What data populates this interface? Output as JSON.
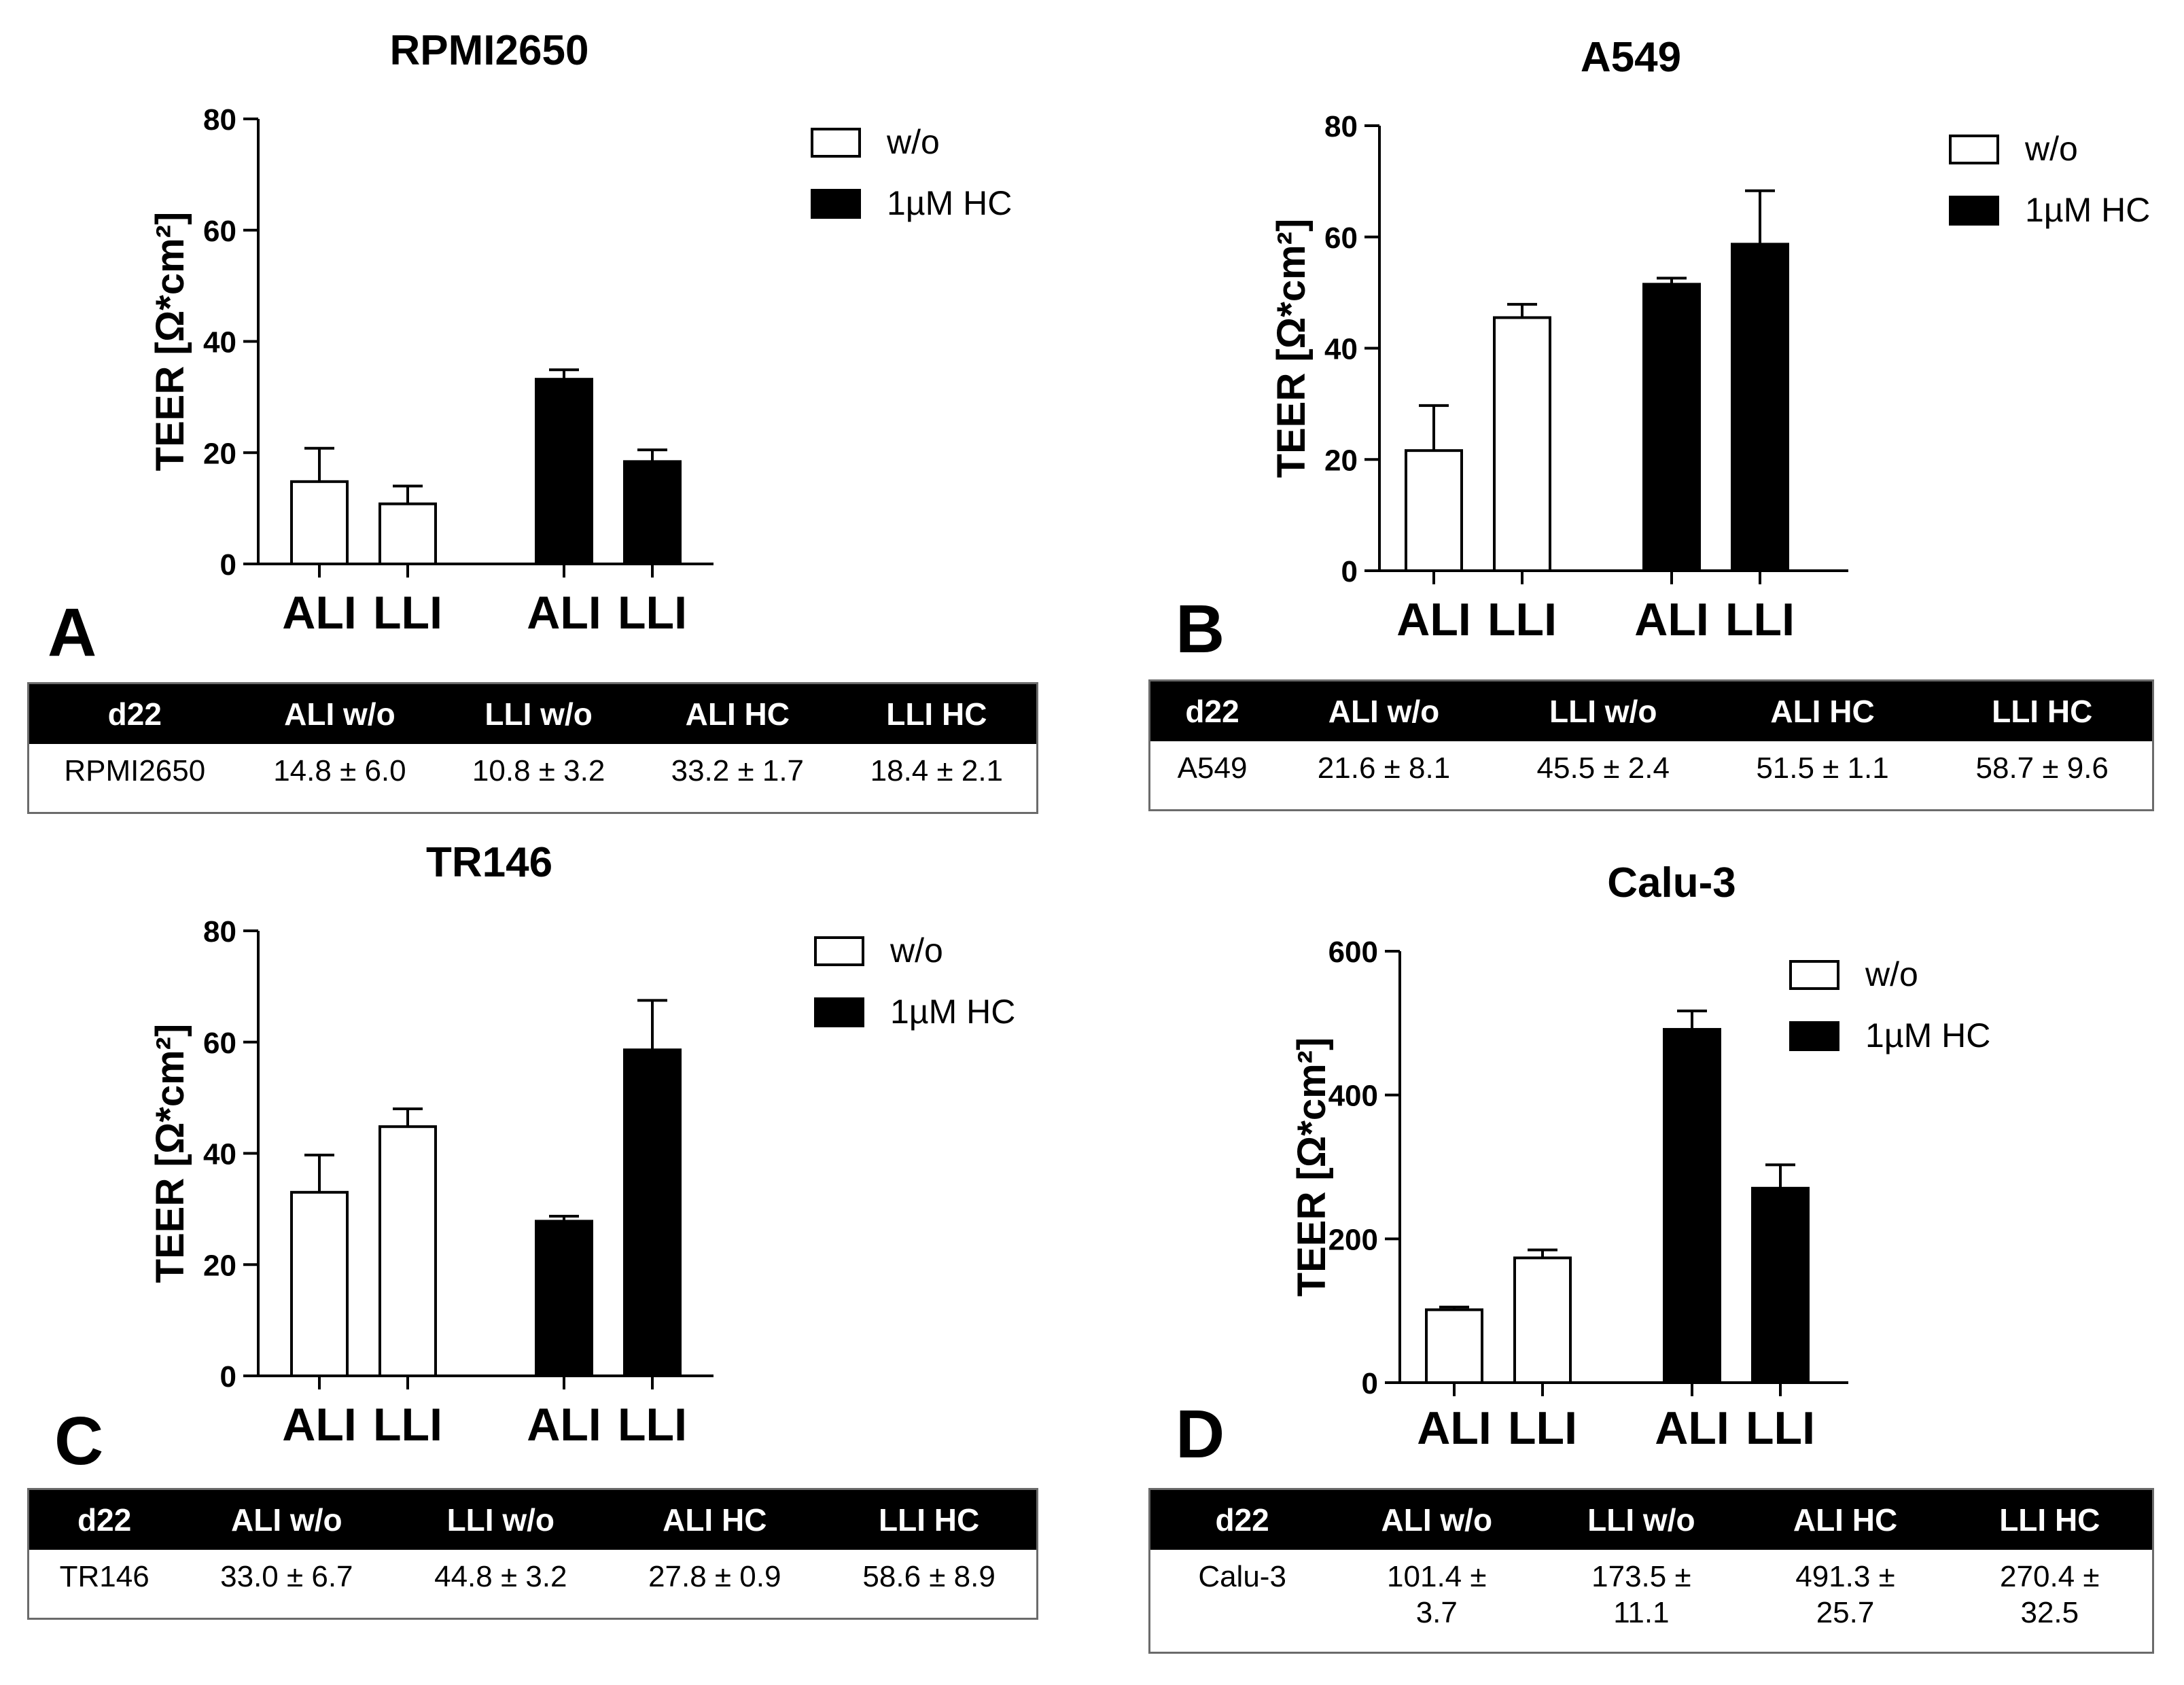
{
  "panels": [
    {
      "letter": "A",
      "table": {
        "headers": [
          "d22",
          "ALI w/o",
          "LLI w/o",
          "ALI HC",
          "LLI HC"
        ],
        "row": [
          "RPMI2650",
          "14.8 ± 6.0",
          "10.8 ± 3.2",
          "33.2 ± 1.7",
          "18.4 ± 2.1"
        ]
      }
    },
    {
      "letter": "B",
      "table": {
        "headers": [
          "d22",
          "ALI w/o",
          "LLI w/o",
          "ALI HC",
          "LLI HC"
        ],
        "row": [
          "A549",
          "21.6 ± 8.1",
          "45.5 ± 2.4",
          "51.5 ± 1.1",
          "58.7 ± 9.6"
        ]
      }
    },
    {
      "letter": "C",
      "table": {
        "headers": [
          "d22",
          "ALI w/o",
          "LLI w/o",
          "ALI HC",
          "LLI HC"
        ],
        "row": [
          "TR146",
          "33.0 ± 6.7",
          "44.8 ± 3.2",
          "27.8 ± 0.9",
          "58.6 ± 8.9"
        ]
      }
    },
    {
      "letter": "D",
      "table": {
        "headers": [
          "d22",
          "ALI w/o",
          "LLI w/o",
          "ALI HC",
          "LLI HC"
        ],
        "row": [
          "Calu-3",
          "101.4 ±\n3.7",
          "173.5 ±\n11.1",
          "491.3 ±\n25.7",
          "270.4 ±\n32.5"
        ]
      }
    }
  ],
  "chart_data": [
    {
      "type": "bar",
      "title": "RPMI2650",
      "ylabel": "TEER [Ω*cm²]",
      "xlabel": "",
      "categories": [
        "ALI",
        "LLI",
        "ALI",
        "LLI"
      ],
      "ylim": [
        0,
        80
      ],
      "yticks": [
        0,
        20,
        40,
        60,
        80
      ],
      "grid": false,
      "legend": "top-right",
      "series": [
        {
          "name": "w/o",
          "color": "#ffffff",
          "values": [
            14.8,
            10.8,
            null,
            null
          ],
          "errors": [
            6.0,
            3.2,
            null,
            null
          ]
        },
        {
          "name": "1µM HC",
          "color": "#000000",
          "values": [
            null,
            null,
            33.2,
            18.4
          ],
          "errors": [
            null,
            null,
            1.7,
            2.1
          ]
        }
      ]
    },
    {
      "type": "bar",
      "title": "A549",
      "ylabel": "TEER [Ω*cm²]",
      "xlabel": "",
      "categories": [
        "ALI",
        "LLI",
        "ALI",
        "LLI"
      ],
      "ylim": [
        0,
        80
      ],
      "yticks": [
        0,
        20,
        40,
        60,
        80
      ],
      "grid": false,
      "legend": "top-right",
      "series": [
        {
          "name": "w/o",
          "color": "#ffffff",
          "values": [
            21.6,
            45.5,
            null,
            null
          ],
          "errors": [
            8.1,
            2.4,
            null,
            null
          ]
        },
        {
          "name": "1µM HC",
          "color": "#000000",
          "values": [
            null,
            null,
            51.5,
            58.7
          ],
          "errors": [
            null,
            null,
            1.1,
            9.6
          ]
        }
      ]
    },
    {
      "type": "bar",
      "title": "TR146",
      "ylabel": "TEER [Ω*cm²]",
      "xlabel": "",
      "categories": [
        "ALI",
        "LLI",
        "ALI",
        "LLI"
      ],
      "ylim": [
        0,
        80
      ],
      "yticks": [
        0,
        20,
        40,
        60,
        80
      ],
      "grid": false,
      "legend": "top-right",
      "series": [
        {
          "name": "w/o",
          "color": "#ffffff",
          "values": [
            33.0,
            44.8,
            null,
            null
          ],
          "errors": [
            6.7,
            3.2,
            null,
            null
          ]
        },
        {
          "name": "1µM HC",
          "color": "#000000",
          "values": [
            null,
            null,
            27.8,
            58.6
          ],
          "errors": [
            null,
            null,
            0.9,
            8.9
          ]
        }
      ]
    },
    {
      "type": "bar",
      "title": "Calu-3",
      "ylabel": "TEER [Ω*cm²]",
      "xlabel": "",
      "categories": [
        "ALI",
        "LLI",
        "ALI",
        "LLI"
      ],
      "ylim": [
        0,
        600
      ],
      "yticks": [
        0,
        200,
        400,
        600
      ],
      "grid": false,
      "legend": "top-right",
      "series": [
        {
          "name": "w/o",
          "color": "#ffffff",
          "values": [
            101.4,
            173.5,
            null,
            null
          ],
          "errors": [
            3.7,
            11.1,
            null,
            null
          ]
        },
        {
          "name": "1µM HC",
          "color": "#000000",
          "values": [
            null,
            null,
            491.3,
            270.4
          ],
          "errors": [
            null,
            null,
            25.7,
            32.5
          ]
        }
      ]
    }
  ]
}
